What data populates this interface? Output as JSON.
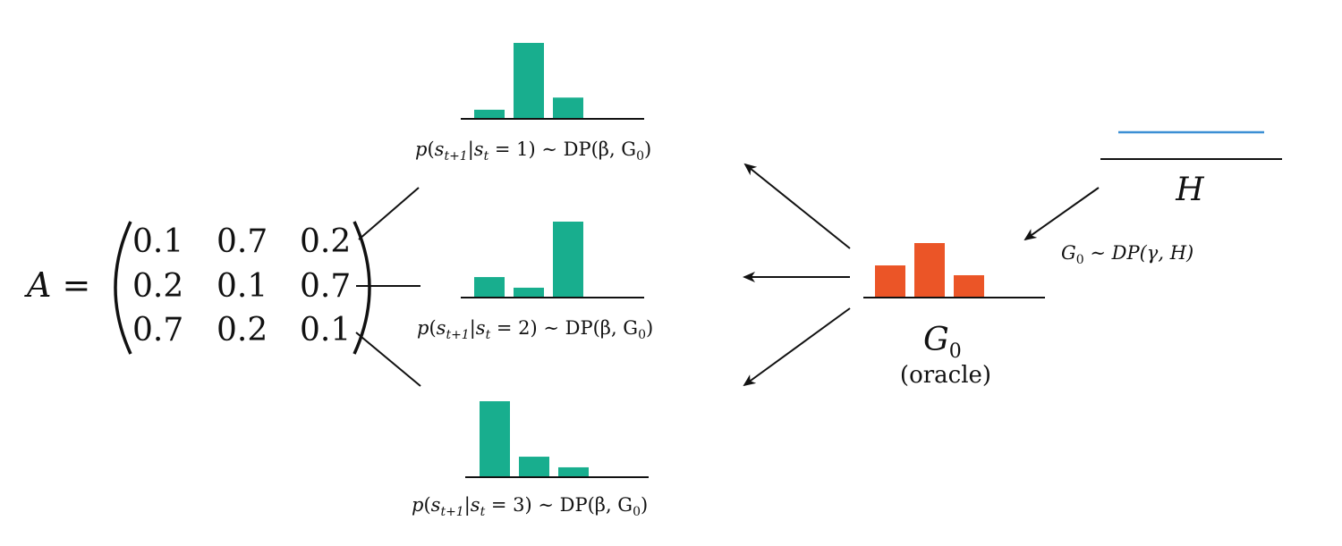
{
  "matrix": {
    "lhs": "A =",
    "rows": [
      [
        "0.1",
        "0.7",
        "0.2"
      ],
      [
        "0.2",
        "0.1",
        "0.7"
      ],
      [
        "0.7",
        "0.2",
        "0.1"
      ]
    ]
  },
  "state_distributions": [
    {
      "state": "1",
      "bars": [
        0.12,
        1.0,
        0.28
      ],
      "caption": {
        "p": "p",
        "s": "s",
        "sub1": "t+1",
        "bar": "|s",
        "sub2": "t",
        "rest": " = 1) ∼ DP(β, G",
        "sub3": "0",
        "close": ")"
      }
    },
    {
      "state": "2",
      "bars": [
        0.27,
        0.13,
        1.0
      ],
      "caption": {
        "p": "p",
        "s": "s",
        "sub1": "t+1",
        "bar": "|s",
        "sub2": "t",
        "rest": " = 2) ∼ DP(β, G",
        "sub3": "0",
        "close": ")"
      }
    },
    {
      "state": "3",
      "bars": [
        1.0,
        0.27,
        0.13
      ],
      "caption": {
        "p": "p",
        "s": "s",
        "sub1": "t+1",
        "bar": "|s",
        "sub2": "t",
        "rest": " = 3) ∼ DP(β, G",
        "sub3": "0",
        "close": ")"
      }
    }
  ],
  "oracle": {
    "symbol": "G",
    "subscript": "0",
    "label": "(oracle)",
    "bars": [
      0.59,
      1.0,
      0.41
    ]
  },
  "base": {
    "symbol": "H",
    "equation": {
      "g": "G",
      "sub": "0",
      "rest": " ∼ DP(γ, H)"
    }
  },
  "colors": {
    "state_bar": "#18ae8e",
    "oracle_bar": "#eb5527",
    "base_line": "#3b8fd4",
    "ink": "#111111"
  }
}
